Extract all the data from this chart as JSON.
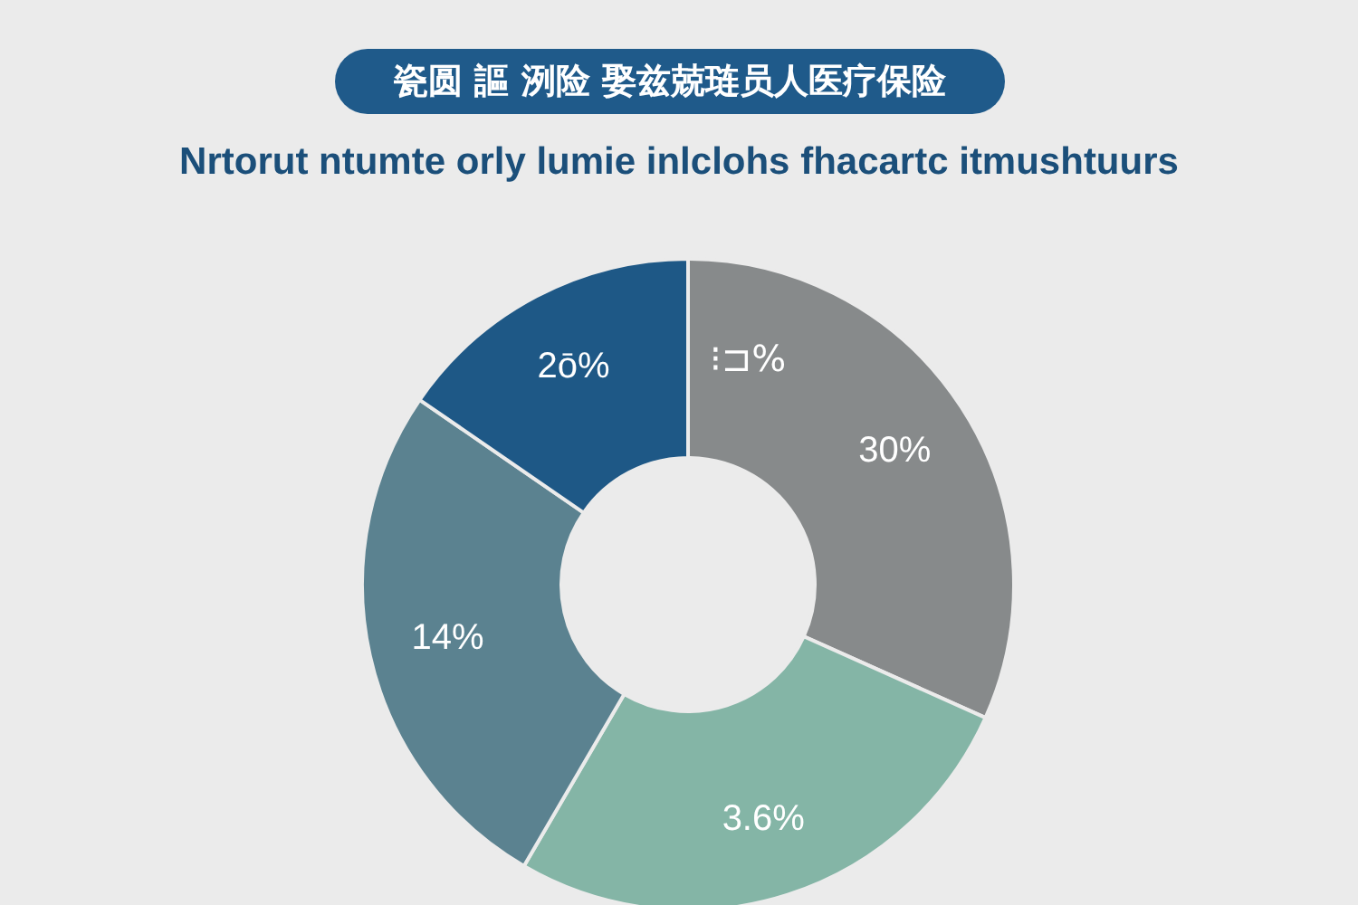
{
  "chart_data": {
    "type": "donut",
    "title": "瓷圆 謳 洌险 娶兹兢琏员人医疗保险",
    "subtitle": "Nrtorut ntumte orly lumie inlclohs fhacartc itmushtuurs",
    "categories": [
      null,
      null,
      null,
      null
    ],
    "values": [
      31.7,
      26.7,
      26.2,
      15.4
    ],
    "colors": [
      "#878a8b",
      "#84b5a6",
      "#5b8290",
      "#1e5886"
    ],
    "annotations": [
      "30%",
      "3.6%",
      "14%",
      "2ō%",
      "⁝⊐%"
    ]
  }
}
